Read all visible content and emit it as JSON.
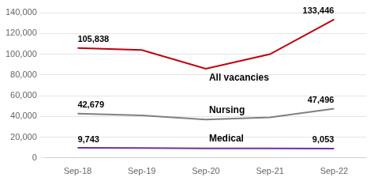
{
  "chart_data": {
    "type": "line",
    "categories": [
      "Sep-18",
      "Sep-19",
      "Sep-20",
      "Sep-21",
      "Sep-22"
    ],
    "series": [
      {
        "name": "All vacancies",
        "color": "#c0000c",
        "values": [
          105838,
          104000,
          86000,
          100000,
          133446
        ]
      },
      {
        "name": "Nursing",
        "color": "#808080",
        "values": [
          42679,
          41000,
          37000,
          39000,
          47496
        ]
      },
      {
        "name": "Medical",
        "color": "#7030a0",
        "values": [
          9743,
          9500,
          9200,
          9100,
          9053
        ]
      }
    ],
    "ylim": [
      0,
      140000
    ],
    "yticks": [
      0,
      {
        "value": 20000,
        "label": "20,000"
      },
      {
        "value": 40000,
        "label": "40,000"
      },
      {
        "value": 60000,
        "label": "60,000"
      },
      {
        "value": 80000,
        "label": "80,000"
      },
      {
        "value": 100000,
        "label": "100,000"
      },
      {
        "value": 120000,
        "label": "120,000"
      },
      {
        "value": 140000,
        "label": "140,000"
      }
    ],
    "grid": true,
    "annotations": [
      {
        "text": "105,838",
        "series": "All vacancies",
        "category": "Sep-18"
      },
      {
        "text": "133,446",
        "series": "All vacancies",
        "category": "Sep-22"
      },
      {
        "text": "42,679",
        "series": "Nursing",
        "category": "Sep-18"
      },
      {
        "text": "47,496",
        "series": "Nursing",
        "category": "Sep-22"
      },
      {
        "text": "9,743",
        "series": "Medical",
        "category": "Sep-18"
      },
      {
        "text": "9,053",
        "series": "Medical",
        "category": "Sep-22"
      }
    ]
  }
}
